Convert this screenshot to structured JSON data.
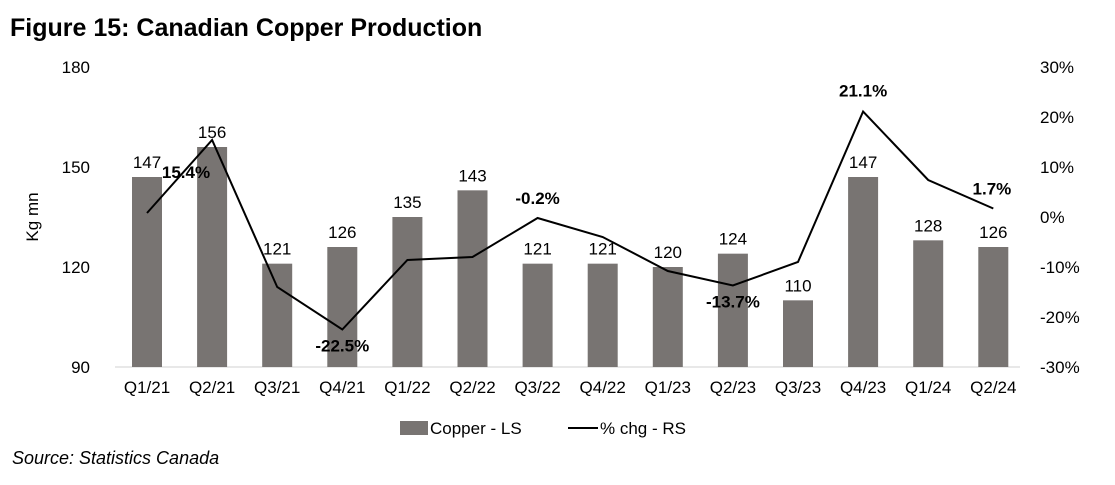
{
  "chart_data": {
    "type": "bar+line",
    "title": "Figure 15: Canadian Copper Production",
    "source": "Source: Statistics Canada",
    "ylabel_left": "Kg mn",
    "categories": [
      "Q1/21",
      "Q2/21",
      "Q3/21",
      "Q4/21",
      "Q1/22",
      "Q2/22",
      "Q3/22",
      "Q4/22",
      "Q1/23",
      "Q2/23",
      "Q3/23",
      "Q4/23",
      "Q1/24",
      "Q2/24"
    ],
    "series": [
      {
        "name": "Copper - LS",
        "type": "bar",
        "axis": "left",
        "color": "#787472",
        "values": [
          147,
          156,
          121,
          126,
          135,
          143,
          121,
          121,
          120,
          124,
          110,
          147,
          128,
          126
        ],
        "labels": [
          "147",
          "156",
          "121",
          "126",
          "135",
          "143",
          "121",
          "121",
          "120",
          "124",
          "110",
          "147",
          "128",
          "126"
        ]
      },
      {
        "name": "% chg - RS",
        "type": "line",
        "axis": "right",
        "color": "#000000",
        "values": [
          0.8,
          15.4,
          -14.0,
          -22.5,
          -8.6,
          -8.0,
          -0.2,
          -4.0,
          -10.8,
          -13.7,
          -9.0,
          21.1,
          7.4,
          1.7
        ],
        "labels": {
          "1": "15.4%",
          "3": "-22.5%",
          "6": "-0.2%",
          "9": "-13.7%",
          "11": "21.1%",
          "13": "1.7%"
        }
      }
    ],
    "left_axis": {
      "range": [
        90,
        180
      ],
      "ticks": [
        "90",
        "120",
        "150",
        "180"
      ]
    },
    "right_axis": {
      "range": [
        -30,
        30
      ],
      "ticks": [
        "-30%",
        "-20%",
        "-10%",
        "0%",
        "10%",
        "20%",
        "30%"
      ]
    },
    "legend_position": "bottom",
    "grid": false
  }
}
